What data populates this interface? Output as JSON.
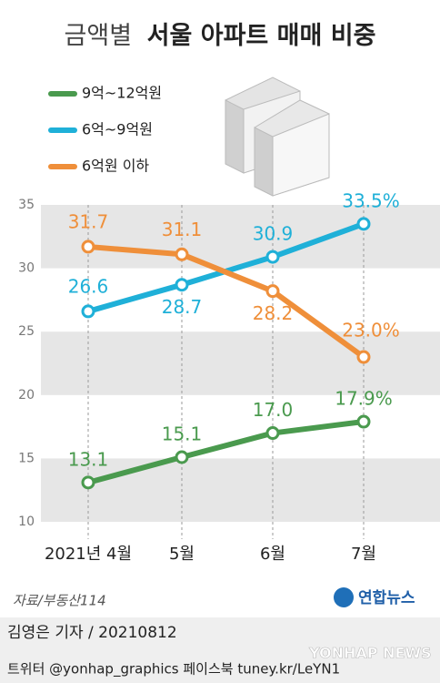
{
  "chart_data": {
    "type": "line",
    "title": [
      "금액별",
      "서울 아파트 매매 비중"
    ],
    "categories": [
      "2021년 4월",
      "5월",
      "6월",
      "7월"
    ],
    "series": [
      {
        "name": "9억~12억원",
        "color": "#4a9a4e",
        "values": [
          13.1,
          15.1,
          17.0,
          17.9
        ],
        "value_labels": [
          "13.1",
          "15.1",
          "17.0",
          "17.9%"
        ]
      },
      {
        "name": "6억~9억원",
        "color": "#1fb0d8",
        "values": [
          26.6,
          28.7,
          30.9,
          33.5
        ],
        "value_labels": [
          "26.6",
          "28.7",
          "30.9",
          "33.5%"
        ]
      },
      {
        "name": "6억원 이하",
        "color": "#ef8f3a",
        "values": [
          31.7,
          31.1,
          28.2,
          23.0
        ],
        "value_labels": [
          "31.7",
          "31.1",
          "28.2",
          "23.0%"
        ]
      }
    ],
    "ylim": [
      10,
      35
    ],
    "yticks": [
      10,
      15,
      20,
      25,
      30,
      35
    ],
    "grid": true
  },
  "footer": {
    "source": "자료/부동산114",
    "logo": "연합뉴스",
    "credit": "김영은 기자 / 20210812",
    "social": "트위터 @yonhap_graphics  페이스북 tuney.kr/LeYN1",
    "watermark": "YONHAP NEWS"
  }
}
